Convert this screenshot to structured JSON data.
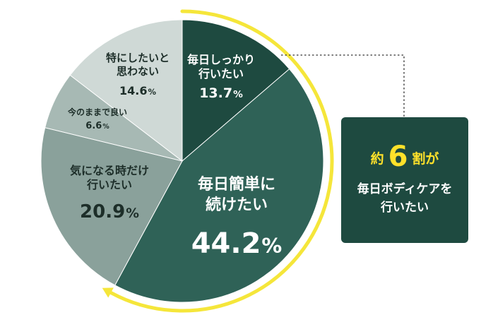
{
  "chart_data": {
    "type": "pie",
    "slices": [
      {
        "label": "毎日しっかり\n行いたい",
        "value": 13.7,
        "color": "#1e4a40",
        "text_color": "#ffffff"
      },
      {
        "label": "毎日簡単に\n続けたい",
        "value": 44.2,
        "color": "#2f6257",
        "text_color": "#ffffff"
      },
      {
        "label": "気になる時だけ\n行いたい",
        "value": 20.9,
        "color": "#8aa19b",
        "text_color": "#1d2e29"
      },
      {
        "label": "今のままで良い",
        "value": 6.6,
        "color": "#a7b9b4",
        "text_color": "#1d2e29"
      },
      {
        "label": "特にしたいと\n思わない",
        "value": 14.6,
        "color": "#cfd9d6",
        "text_color": "#1d2e29"
      }
    ],
    "value_suffix": "%",
    "start_angle": "12 o'clock",
    "direction": "clockwise",
    "accent_arc_color": "#f5e63a"
  },
  "callout": {
    "prefix": "約",
    "number": "6",
    "suffix": "割が",
    "line1": "毎日ボディケアを",
    "line2": "行いたい"
  }
}
